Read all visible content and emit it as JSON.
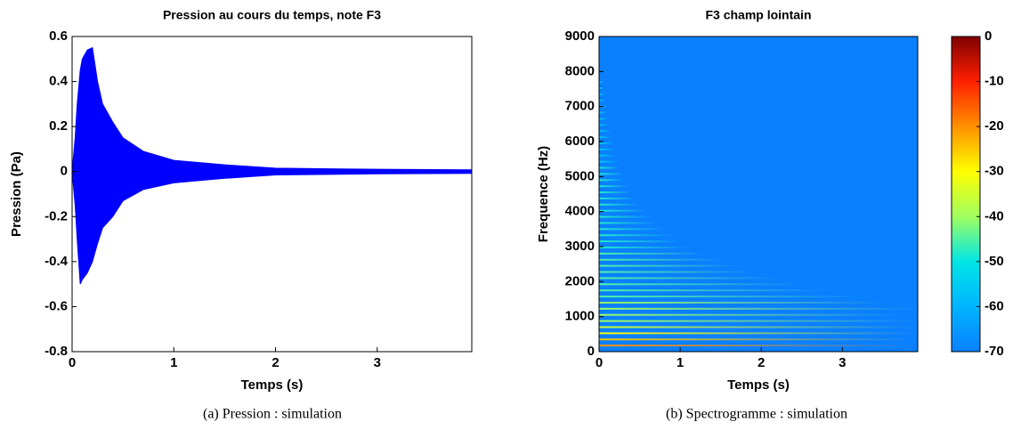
{
  "chart_data": [
    {
      "type": "band",
      "title": "Pression au cours du temps, note F3",
      "xlabel": "Temps (s)",
      "ylabel": "Pression (Pa)",
      "caption": "(a)  Pression : simulation",
      "color": "#0000ff",
      "x": [
        0,
        0.03,
        0.05,
        0.08,
        0.1,
        0.15,
        0.2,
        0.25,
        0.3,
        0.4,
        0.5,
        0.7,
        1.0,
        1.5,
        2.0,
        3.0,
        3.93
      ],
      "upper": [
        0,
        0.15,
        0.3,
        0.45,
        0.5,
        0.54,
        0.55,
        0.4,
        0.3,
        0.22,
        0.15,
        0.09,
        0.05,
        0.03,
        0.015,
        0.01,
        0.008
      ],
      "lower": [
        0,
        -0.15,
        -0.3,
        -0.5,
        -0.48,
        -0.45,
        -0.4,
        -0.32,
        -0.25,
        -0.2,
        -0.13,
        -0.08,
        -0.05,
        -0.03,
        -0.015,
        -0.01,
        -0.008
      ],
      "xlim": [
        0,
        3.93
      ],
      "xticks": [
        0,
        1,
        2,
        3
      ],
      "ylim": [
        -0.8,
        0.6
      ],
      "yticks": [
        -0.8,
        -0.6,
        -0.4,
        -0.2,
        0,
        0.2,
        0.4,
        0.6
      ]
    },
    {
      "type": "spectrogram",
      "title": "F3 champ lointain",
      "xlabel": "Temps (s)",
      "ylabel": "Frequence (Hz)",
      "caption": "(b)  Spectrogramme : simulation",
      "frequencies": [
        175,
        350,
        525,
        700,
        875,
        1050,
        1225,
        1400,
        1575,
        1750,
        1925,
        2100,
        2275,
        2450,
        2625,
        2800,
        2975,
        3150,
        3325,
        3500,
        3675,
        3850,
        4025,
        4200,
        4375,
        4550,
        4725,
        4900,
        5075,
        5250,
        5425,
        5600,
        5775,
        5950,
        6125,
        6300,
        6475,
        6650,
        6825,
        7000,
        7175,
        7350,
        7525,
        7700
      ],
      "durations": [
        3.93,
        3.93,
        3.93,
        3.93,
        3.93,
        3.7,
        3.93,
        3.5,
        3.2,
        2.8,
        2.5,
        2.2,
        1.9,
        1.7,
        1.5,
        1.3,
        1.1,
        1.0,
        0.9,
        0.8,
        0.7,
        0.65,
        0.6,
        0.5,
        0.45,
        0.4,
        0.35,
        0.3,
        0.3,
        0.25,
        0.25,
        0.2,
        0.2,
        0.18,
        0.15,
        0.15,
        0.12,
        0.12,
        0.1,
        0.1,
        0.08,
        0.08,
        0.06,
        0.06
      ],
      "levels": [
        -20,
        -25,
        -30,
        -35,
        -40,
        -40,
        -40,
        -40,
        -45,
        -45,
        -45,
        -45,
        -45,
        -45,
        -45,
        -45,
        -48,
        -48,
        -48,
        -48,
        -48,
        -48,
        -48,
        -48,
        -48,
        -48,
        -48,
        -48,
        -48,
        -48,
        -55,
        -55,
        -55,
        -55,
        -55,
        -55,
        -55,
        -55,
        -55,
        -55,
        -55,
        -55,
        -55,
        -55
      ],
      "floor": -70,
      "colormap": [
        "#0a80ff",
        "#00b4ff",
        "#00e6e6",
        "#a0ff60",
        "#ffff00",
        "#ff9000",
        "#ff2000",
        "#800000"
      ],
      "clim": [
        -70,
        0
      ],
      "cticks": [
        0,
        -10,
        -20,
        -30,
        -40,
        -50,
        -60,
        -70
      ],
      "xlim": [
        0,
        3.93
      ],
      "xticks": [
        0,
        1,
        2,
        3
      ],
      "ylim": [
        0,
        9000
      ],
      "yticks": [
        0,
        1000,
        2000,
        3000,
        4000,
        5000,
        6000,
        7000,
        8000,
        9000
      ]
    }
  ]
}
